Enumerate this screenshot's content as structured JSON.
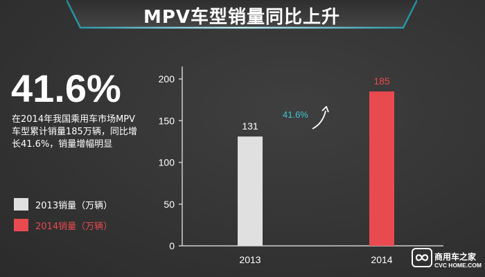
{
  "title": "MPV车型销量同比上升",
  "headline_value": "41.6%",
  "description": "在2014年我国乘用车市场MPV车型累计销量185万辆，同比增长41.6%，销量增幅明显",
  "legend": [
    {
      "label": "2013销量（万辆）",
      "color": "#e0e0e0",
      "text_color": "#ffffff"
    },
    {
      "label": "2014销量（万辆）",
      "color": "#e84a4f",
      "text_color": "#e84a4f"
    }
  ],
  "growth_annotation": "41.6%",
  "colors": {
    "background": "#383838",
    "banner": "#3a3a3a",
    "banner_edge": "#8fe0ea",
    "accent_cyan": "#3fc6d6",
    "accent_red": "#e84a4f",
    "bar_2013": "#e0e0e0",
    "axis_text": "#ffffff"
  },
  "watermark": {
    "icon": "infinity-logo-icon",
    "text_cn": "商用车之家",
    "text_en": "CVC HOME.COM"
  },
  "chart_data": {
    "type": "bar",
    "categories": [
      "2013",
      "2014"
    ],
    "values": [
      131,
      185
    ],
    "ylim": [
      0,
      200
    ],
    "yticks": [
      0,
      50,
      100,
      150,
      200
    ],
    "xlabel": "",
    "ylabel": "",
    "grid": false,
    "bar_colors": [
      "#e0e0e0",
      "#e84a4f"
    ],
    "label_colors": [
      "#ffffff",
      "#e84a4f"
    ],
    "data_labels": [
      "131",
      "185"
    ]
  }
}
